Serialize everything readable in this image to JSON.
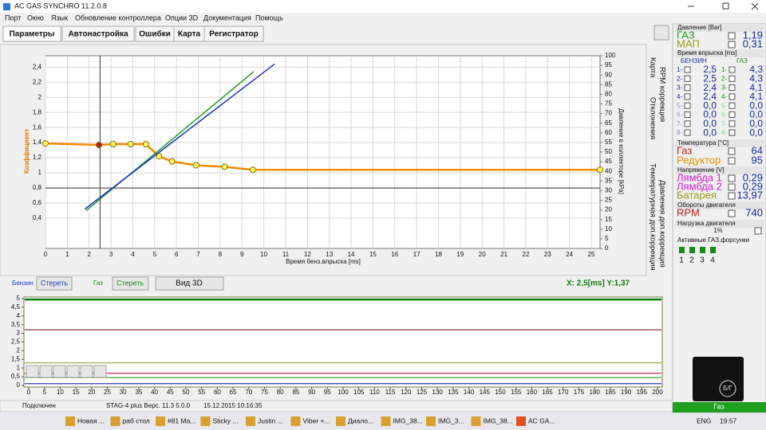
{
  "window": {
    "title": "AC GAS SYNCHRO  11.2.0.8"
  },
  "menu": [
    "Порт",
    "Окно",
    "Язык",
    "Обновление контроллера",
    "Опции 3D",
    "Документация",
    "Помощь"
  ],
  "tabs": [
    "Параметры",
    "Автонастройка",
    "Ошибки",
    "Карта",
    "Регистратор"
  ],
  "side_tabs": [
    "Карта",
    "RPM коррекция",
    "Отклонения",
    "Температурная доп.коррекция",
    "Давления доп.коррекция"
  ],
  "chart_data": [
    {
      "type": "line",
      "xlabel": "Время бенз.впрыска [ms]",
      "ylabel": "Коэффициент",
      "y2label": "Давление в коллекторе [kPa]",
      "xlim": [
        0,
        25.4
      ],
      "ylim": [
        0,
        2.55
      ],
      "y2lim": [
        0,
        100
      ],
      "grid": true,
      "xticks": [
        0,
        1,
        2,
        3,
        4,
        5,
        6,
        7,
        8,
        9,
        10,
        11,
        12,
        13,
        14,
        15,
        16,
        17,
        18,
        19,
        20,
        21,
        22,
        23,
        24,
        25
      ],
      "yticks": [
        {
          "value": 0.4,
          "label": "0,4"
        },
        {
          "value": 0.6,
          "label": "0,6"
        },
        {
          "value": 0.8,
          "label": "0,8"
        },
        1,
        {
          "value": 1.2,
          "label": "1,2"
        },
        {
          "value": 1.4,
          "label": "1,4"
        },
        {
          "value": 1.6,
          "label": "1,6"
        },
        {
          "value": 1.8,
          "label": "1,8"
        },
        2,
        {
          "value": 2.2,
          "label": "2,2"
        },
        {
          "value": 2.4,
          "label": "2,4"
        }
      ],
      "y2ticks": [
        0,
        5,
        10,
        15,
        20,
        25,
        30,
        35,
        40,
        45,
        50,
        55,
        60,
        65,
        70,
        75,
        80,
        85,
        90,
        95,
        100
      ],
      "series": [
        {
          "color": "#f08c00",
          "x": [
            0,
            2.45,
            3.1,
            3.9,
            4.6,
            5.2,
            5.8,
            6.9,
            8.2,
            9.5,
            25.4
          ],
          "values": [
            1.39,
            1.37,
            1.38,
            1.38,
            1.38,
            1.22,
            1.15,
            1.1,
            1.08,
            1.04,
            1.04
          ]
        },
        {
          "color": "#1f9e1f",
          "x": [
            1.86,
            9.54
          ],
          "values": [
            0.5,
            2.34
          ]
        },
        {
          "color": "#1c2fc8",
          "x": [
            1.8,
            10.49
          ],
          "values": [
            0.52,
            2.44
          ]
        }
      ],
      "readout": "X:  2,5[ms]  Y:1,37"
    },
    {
      "type": "line",
      "xlim": [
        0,
        200
      ],
      "ylim": [
        0,
        5
      ],
      "xticks": [
        0,
        5,
        10,
        15,
        20,
        25,
        30,
        35,
        40,
        45,
        50,
        55,
        60,
        65,
        70,
        75,
        80,
        85,
        90,
        95,
        100,
        105,
        110,
        115,
        120,
        125,
        130,
        135,
        140,
        145,
        150,
        155,
        160,
        165,
        170,
        175,
        180,
        185,
        190,
        195,
        200
      ],
      "yticks": [
        0,
        {
          "value": 0.5,
          "label": "0,5"
        },
        1,
        {
          "value": 1.5,
          "label": "1,5"
        },
        2,
        {
          "value": 2.5,
          "label": "2,5"
        },
        3,
        {
          "value": 3.5,
          "label": "3,5"
        },
        4,
        {
          "value": 4.5,
          "label": "4,5"
        },
        5
      ],
      "hlines": [
        {
          "color": "#0a7a0a",
          "value": 4.95
        },
        {
          "color": "#8b3a3a",
          "value": 3.2
        },
        {
          "color": "#a8ac50",
          "value": 1.3
        },
        {
          "color": "#c03050",
          "value": 0.7
        },
        {
          "color": "#20a020",
          "value": 0.45
        },
        {
          "color": "#2020a0",
          "value": 0.1
        }
      ]
    }
  ],
  "controls": {
    "petrol_label": "Бензин",
    "petrol_clear": "Стереть",
    "gas_label": "Газ",
    "gas_clear": "Стереть",
    "view3d": "Вид 3D"
  },
  "panel": {
    "pressure": {
      "title": "Давление [Bar]",
      "rows": [
        [
          "ГАЗ",
          "1,19"
        ],
        [
          "МАП",
          "0,31"
        ]
      ]
    },
    "injection": {
      "title": "Время впрыска [ms]",
      "petrol": "БЕНЗИН",
      "gas": "ГАЗ",
      "rows": [
        [
          "1-",
          "2,5",
          "1-",
          "4,3"
        ],
        [
          "2-",
          "2,5",
          "2-",
          "4,3"
        ],
        [
          "3-",
          "2,4",
          "3-",
          "4,1"
        ],
        [
          "4-",
          "2,4",
          "4-",
          "4,1"
        ],
        [
          "5-",
          "0,0",
          "5-",
          "0,0"
        ],
        [
          "6-",
          "0,0",
          "6-",
          "0,0"
        ],
        [
          "7-",
          "0,0",
          "7-",
          "0,0"
        ],
        [
          "8-",
          "0,0",
          "8-",
          "0,0"
        ]
      ]
    },
    "temperature": {
      "title": "Температура [°C]",
      "rows": [
        [
          "Газ",
          "64"
        ],
        [
          "Редуктор",
          "95"
        ]
      ]
    },
    "voltage": {
      "title": "Напряжение [V]",
      "rows": [
        [
          "Лямбда 1",
          "0,29"
        ],
        [
          "Лямбда 2",
          "0,29"
        ],
        [
          "Батарея",
          "13,97"
        ]
      ]
    },
    "rpm": {
      "title": "Обороты двигателя",
      "rows": [
        [
          "RPM",
          "740"
        ]
      ]
    },
    "load": {
      "title": "Нагрузка двигателя",
      "value": "1%"
    },
    "injectors": {
      "title": "Активные ГАЗ.форсунки",
      "labels": [
        "1",
        "2",
        "3",
        "4"
      ]
    },
    "gauge_label": "Б/Г",
    "fuel_mode": "Газ"
  },
  "status": [
    "Подключен",
    "STAG-4 plus   Верс.  11.3   5.0.0",
    "15.12.2015 10:16:35"
  ],
  "taskbar": {
    "items": [
      "Новая ...",
      "раб стол",
      "#81 Ma...",
      "Sticky ...",
      "Justin ...",
      "Viber +...",
      "Диало...",
      "IMG_38...",
      "IMG_3...",
      "IMG_38...",
      "AC GA..."
    ],
    "lang": "ENG",
    "time": "19:57"
  }
}
